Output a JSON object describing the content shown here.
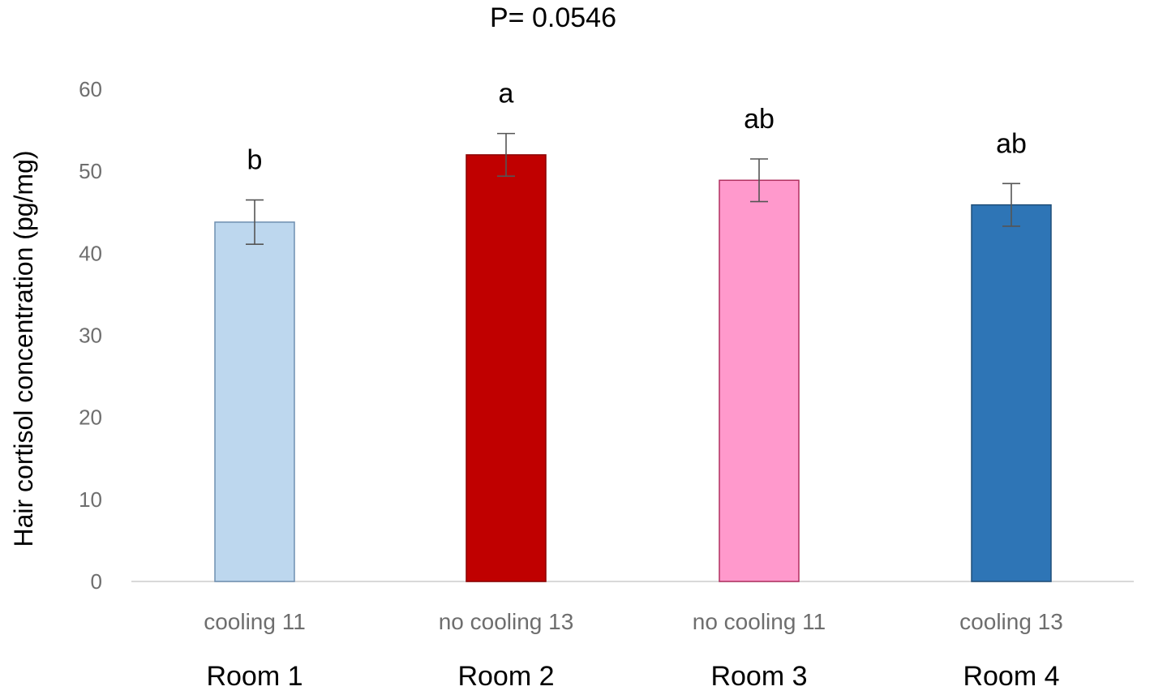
{
  "chart_data": {
    "type": "bar",
    "title": "P= 0.0546",
    "ylabel": "Hair cortisol concentration (pg/mg)",
    "xlabel": "",
    "ylim": [
      0,
      60
    ],
    "yticks": [
      0,
      10,
      20,
      30,
      40,
      50,
      60
    ],
    "grid": false,
    "categories": [
      "cooling 11",
      "no cooling 13",
      "no cooling 11",
      "cooling 13"
    ],
    "groups": [
      "Room 1",
      "Room 2",
      "Room 3",
      "Room 4"
    ],
    "values": [
      43.8,
      52.0,
      48.9,
      45.9
    ],
    "error": [
      2.7,
      2.6,
      2.6,
      2.6
    ],
    "significance": [
      "b",
      "a",
      "ab",
      "ab"
    ],
    "colors": [
      "#bdd7ee",
      "#c00000",
      "#ff99cc",
      "#2e75b6"
    ],
    "edge_colors": [
      "#6f8fb0",
      "#8b0000",
      "#b03060",
      "#1f4e79"
    ]
  }
}
